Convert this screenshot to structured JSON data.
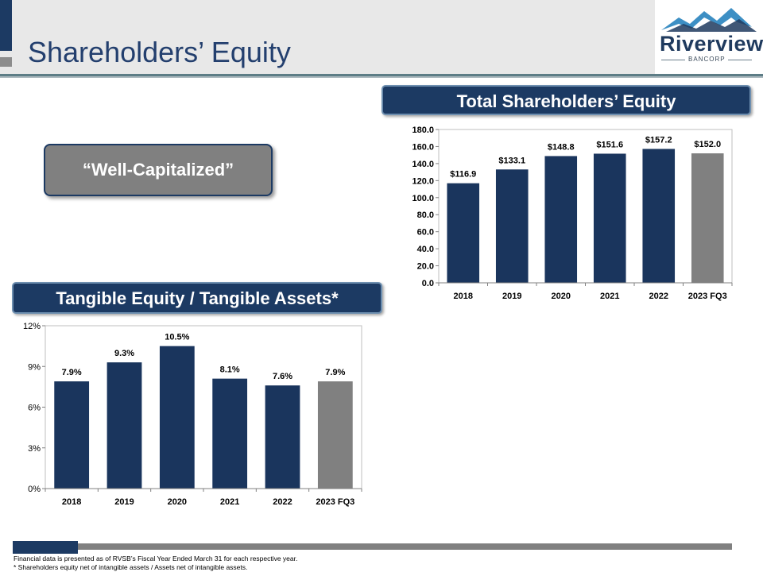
{
  "title": "Shareholders’ Equity",
  "logo": {
    "name": "Riverview",
    "sub": "BANCORP"
  },
  "callout": "“Well-Capitalized”",
  "total_equity_title": "Total Shareholders’ Equity",
  "tangible_title": "Tangible Equity / Tangible Assets*",
  "footnotes": [
    "Financial data is presented as of RVSB’s Fiscal Year Ended March 31 for each respective year.",
    "* Shareholders equity net of intangible assets / Assets net of intangible assets."
  ],
  "colors": {
    "bar": "#1a355d",
    "bar_highlight": "#808080",
    "accent": "#1c3a63"
  },
  "chart_data": [
    {
      "type": "bar",
      "title": "Total Shareholders’ Equity",
      "categories": [
        "2018",
        "2019",
        "2020",
        "2021",
        "2022",
        "2023 FQ3"
      ],
      "values": [
        116.9,
        133.1,
        148.8,
        151.6,
        157.2,
        152.0
      ],
      "data_labels": [
        "$116.9",
        "$133.1",
        "$148.8",
        "$151.6",
        "$157.2",
        "$152.0"
      ],
      "yticks": [
        "0.0",
        "20.0",
        "40.0",
        "60.0",
        "80.0",
        "100.0",
        "120.0",
        "140.0",
        "160.0",
        "180.0"
      ],
      "ylim": [
        0,
        180
      ],
      "highlight_last": true,
      "grid": false
    },
    {
      "type": "bar",
      "title": "Tangible Equity / Tangible Assets*",
      "categories": [
        "2018",
        "2019",
        "2020",
        "2021",
        "2022",
        "2023 FQ3"
      ],
      "values": [
        7.9,
        9.3,
        10.5,
        8.1,
        7.6,
        7.9
      ],
      "data_labels": [
        "7.9%",
        "9.3%",
        "10.5%",
        "8.1%",
        "7.6%",
        "7.9%"
      ],
      "yticks": [
        "0%",
        "3%",
        "6%",
        "9%",
        "12%"
      ],
      "ylim": [
        0,
        12
      ],
      "highlight_last": true,
      "grid": false
    }
  ]
}
